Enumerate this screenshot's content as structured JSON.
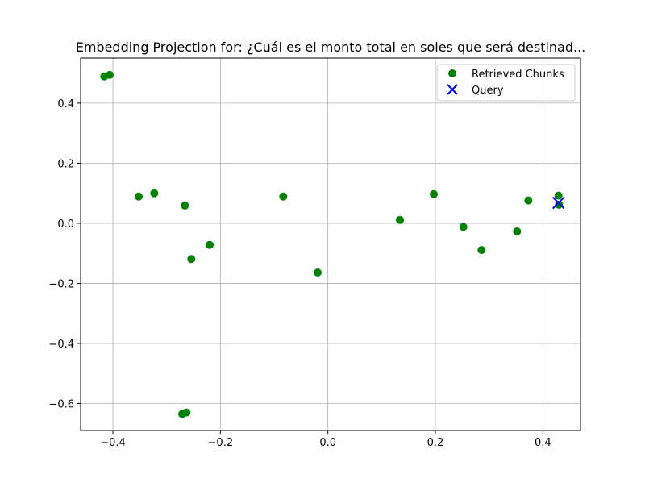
{
  "chart_data": {
    "type": "scatter",
    "title": "Embedding Projection for: ¿Cuál es el monto total en soles que será destinad...",
    "xlabel": "",
    "ylabel": "",
    "xlim": [
      -0.46,
      0.47
    ],
    "ylim": [
      -0.69,
      0.55
    ],
    "x_ticks": [
      -0.4,
      -0.2,
      0.0,
      0.2,
      0.4
    ],
    "x_tick_labels": [
      "−0.4",
      "−0.2",
      "0.0",
      "0.2",
      "0.4"
    ],
    "y_ticks": [
      0.4,
      0.2,
      0.0,
      -0.2,
      -0.4,
      -0.6
    ],
    "y_tick_labels": [
      "0.4",
      "0.2",
      "0.0",
      "−0.2",
      "−0.4",
      "−0.6"
    ],
    "grid": true,
    "legend_position": "top-right",
    "series": [
      {
        "name": "Retrieved Chunks",
        "marker": "circle",
        "color": "#008000",
        "points": [
          {
            "x": -0.416,
            "y": 0.489
          },
          {
            "x": -0.406,
            "y": 0.494
          },
          {
            "x": -0.352,
            "y": 0.089
          },
          {
            "x": -0.323,
            "y": 0.1
          },
          {
            "x": -0.266,
            "y": 0.059
          },
          {
            "x": -0.254,
            "y": -0.119
          },
          {
            "x": -0.22,
            "y": -0.072
          },
          {
            "x": -0.083,
            "y": 0.089
          },
          {
            "x": -0.019,
            "y": -0.164
          },
          {
            "x": 0.134,
            "y": 0.011
          },
          {
            "x": 0.197,
            "y": 0.097
          },
          {
            "x": 0.252,
            "y": -0.012
          },
          {
            "x": 0.286,
            "y": -0.089
          },
          {
            "x": 0.352,
            "y": -0.027
          },
          {
            "x": 0.373,
            "y": 0.076
          },
          {
            "x": 0.429,
            "y": 0.092
          },
          {
            "x": 0.43,
            "y": 0.062
          },
          {
            "x": -0.271,
            "y": -0.635
          },
          {
            "x": -0.263,
            "y": -0.63
          }
        ]
      },
      {
        "name": "Query",
        "marker": "x",
        "color": "#0000ff",
        "points": [
          {
            "x": 0.429,
            "y": 0.068
          }
        ]
      }
    ]
  }
}
